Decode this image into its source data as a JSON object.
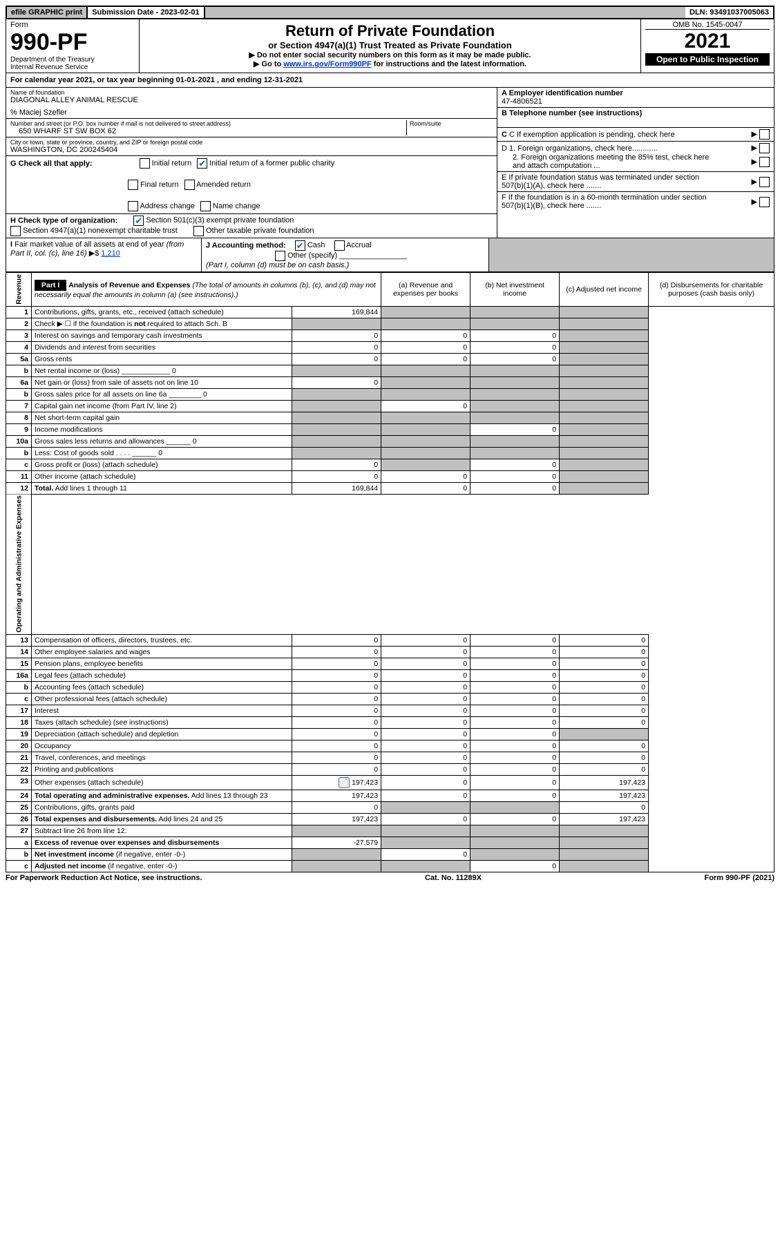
{
  "topbar": {
    "efile": "efile GRAPHIC print",
    "submission": "Submission Date - 2023-02-01",
    "dln": "DLN: 93491037005063"
  },
  "header": {
    "form_label": "Form",
    "form_no": "990-PF",
    "dept1": "Department of the Treasury",
    "dept2": "Internal Revenue Service",
    "title": "Return of Private Foundation",
    "subtitle": "or Section 4947(a)(1) Trust Treated as Private Foundation",
    "instr1": "▶ Do not enter social security numbers on this form as it may be made public.",
    "instr2_pre": "▶ Go to ",
    "instr2_link": "www.irs.gov/Form990PF",
    "instr2_post": " for instructions and the latest information.",
    "omb": "OMB No. 1545-0047",
    "year": "2021",
    "open_pub": "Open to Public Inspection"
  },
  "cal_year": "For calendar year 2021, or tax year beginning 01-01-2021               , and ending 12-31-2021",
  "foundation": {
    "name_label": "Name of foundation",
    "name": "DIAGONAL ALLEY ANIMAL RESCUE",
    "care_of": "% Maciej Szefler",
    "street_label": "Number and street (or P.O. box number if mail is not delivered to street address)",
    "street": "650 WHARF ST SW BOX 62",
    "room_label": "Room/suite",
    "city_label": "City or town, state or province, country, and ZIP or foreign postal code",
    "city": "WASHINGTON, DC  200245404",
    "ein_label": "A Employer identification number",
    "ein": "47-4806521",
    "tel_label": "B Telephone number (see instructions)",
    "c_label": "C If exemption application is pending, check here",
    "d1": "D 1. Foreign organizations, check here............",
    "d2": "2. Foreign organizations meeting the 85% test, check here and attach computation ...",
    "e_label": "E  If private foundation status was terminated under section 507(b)(1)(A), check here .......",
    "f_label": "F  If the foundation is in a 60-month termination under section 507(b)(1)(B), check here .......",
    "g_label": "G Check all that apply:",
    "g_opts": [
      "Initial return",
      "Initial return of a former public charity",
      "Final return",
      "Amended return",
      "Address change",
      "Name change"
    ],
    "h_label": "H Check type of organization:",
    "h_opts": [
      "Section 501(c)(3) exempt private foundation",
      "Section 4947(a)(1) nonexempt charitable trust",
      "Other taxable private foundation"
    ],
    "i_label": "I Fair market value of all assets at end of year (from Part II, col. (c), line 16) ▶$ ",
    "i_value": "1,210",
    "j_label": "J Accounting method:",
    "j_cash": "Cash",
    "j_accrual": "Accrual",
    "j_other": "Other (specify)",
    "j_note": "(Part I, column (d) must be on cash basis.)"
  },
  "part1": {
    "label": "Part I",
    "title": "Analysis of Revenue and Expenses",
    "title_note": "(The total of amounts in columns (b), (c), and (d) may not necessarily equal the amounts in column (a) (see instructions).)",
    "col_a": "(a) Revenue and expenses per books",
    "col_b": "(b) Net investment income",
    "col_c": "(c) Adjusted net income",
    "col_d": "(d) Disbursements for charitable purposes (cash basis only)",
    "side_rev": "Revenue",
    "side_exp": "Operating and Administrative Expenses"
  },
  "rows": [
    {
      "n": "1",
      "d": "",
      "a": "169,844",
      "b": "",
      "c": "",
      "sb": true,
      "sc": true,
      "sd": true
    },
    {
      "n": "2",
      "d": "",
      "dotted": true,
      "a": "",
      "b": "",
      "c": "",
      "sa": true,
      "sb": true,
      "sc": true,
      "sd": true
    },
    {
      "n": "3",
      "d": "",
      "a": "0",
      "b": "0",
      "c": "0",
      "sd": true
    },
    {
      "n": "4",
      "d": "",
      "dotted": true,
      "a": "0",
      "b": "0",
      "c": "0",
      "sd": true
    },
    {
      "n": "5a",
      "d": "",
      "dotted": true,
      "a": "0",
      "b": "0",
      "c": "0",
      "sd": true
    },
    {
      "n": "b",
      "d": "",
      "a": "",
      "b": "",
      "c": "",
      "sa": true,
      "sb": true,
      "sc": true,
      "sd": true
    },
    {
      "n": "6a",
      "d": "",
      "a": "0",
      "b": "",
      "c": "",
      "sb": true,
      "sc": true,
      "sd": true
    },
    {
      "n": "b",
      "d": "",
      "a": "",
      "b": "",
      "c": "",
      "sa": true,
      "sb": true,
      "sc": true,
      "sd": true
    },
    {
      "n": "7",
      "d": "",
      "dotted": true,
      "a": "",
      "b": "0",
      "c": "",
      "sa": true,
      "sc": true,
      "sd": true
    },
    {
      "n": "8",
      "d": "",
      "dotted": true,
      "a": "",
      "b": "",
      "c": "",
      "sa": true,
      "sb": true,
      "sc": true,
      "sd": true
    },
    {
      "n": "9",
      "d": "",
      "dotted": true,
      "a": "",
      "b": "",
      "c": "0",
      "sa": true,
      "sb": true,
      "sd": true
    },
    {
      "n": "10a",
      "d": "",
      "a": "",
      "b": "",
      "c": "",
      "sa": true,
      "sb": true,
      "sc": true,
      "sd": true
    },
    {
      "n": "b",
      "d": "",
      "a": "",
      "b": "",
      "c": "",
      "sa": true,
      "sb": true,
      "sc": true,
      "sd": true
    },
    {
      "n": "c",
      "d": "",
      "dotted": true,
      "a": "0",
      "b": "",
      "c": "0",
      "sb": true,
      "sd": true
    },
    {
      "n": "11",
      "d": "",
      "dotted": true,
      "a": "0",
      "b": "0",
      "c": "0",
      "sd": true
    },
    {
      "n": "12",
      "d": "",
      "dotted": true,
      "a": "169,844",
      "b": "0",
      "c": "0",
      "sd": true
    },
    {
      "n": "13",
      "d": "0",
      "a": "0",
      "b": "0",
      "c": "0"
    },
    {
      "n": "14",
      "d": "0",
      "dotted": true,
      "a": "0",
      "b": "0",
      "c": "0"
    },
    {
      "n": "15",
      "d": "0",
      "dotted": true,
      "a": "0",
      "b": "0",
      "c": "0"
    },
    {
      "n": "16a",
      "d": "0",
      "dotted": true,
      "a": "0",
      "b": "0",
      "c": "0"
    },
    {
      "n": "b",
      "d": "0",
      "dotted": true,
      "a": "0",
      "b": "0",
      "c": "0"
    },
    {
      "n": "c",
      "d": "0",
      "dotted": true,
      "a": "0",
      "b": "0",
      "c": "0"
    },
    {
      "n": "17",
      "d": "0",
      "dotted": true,
      "a": "0",
      "b": "0",
      "c": "0"
    },
    {
      "n": "18",
      "d": "0",
      "dotted": true,
      "a": "0",
      "b": "0",
      "c": "0"
    },
    {
      "n": "19",
      "d": "",
      "dotted": true,
      "a": "0",
      "b": "0",
      "c": "0",
      "sd": true
    },
    {
      "n": "20",
      "d": "0",
      "dotted": true,
      "a": "0",
      "b": "0",
      "c": "0"
    },
    {
      "n": "21",
      "d": "0",
      "dotted": true,
      "a": "0",
      "b": "0",
      "c": "0"
    },
    {
      "n": "22",
      "d": "0",
      "dotted": true,
      "a": "0",
      "b": "0",
      "c": "0"
    },
    {
      "n": "23",
      "d": "197,423",
      "dotted": true,
      "icon": true,
      "a": "197,423",
      "b": "0",
      "c": "0"
    },
    {
      "n": "24",
      "d": "197,423",
      "dotted": true,
      "a": "197,423",
      "b": "0",
      "c": "0"
    },
    {
      "n": "25",
      "d": "0",
      "dotted": true,
      "a": "0",
      "b": "",
      "c": "",
      "sb": true,
      "sc": true
    },
    {
      "n": "26",
      "d": "197,423",
      "a": "197,423",
      "b": "0",
      "c": "0"
    },
    {
      "n": "27",
      "d": "",
      "a": "",
      "b": "",
      "c": "",
      "sa": true,
      "sb": true,
      "sc": true,
      "sd": true
    },
    {
      "n": "a",
      "d": "",
      "a": "-27,579",
      "b": "",
      "c": "",
      "sb": true,
      "sc": true,
      "sd": true
    },
    {
      "n": "b",
      "d": "",
      "a": "",
      "b": "0",
      "c": "",
      "sa": true,
      "sc": true,
      "sd": true
    },
    {
      "n": "c",
      "d": "",
      "dotted": true,
      "a": "",
      "b": "",
      "c": "0",
      "sa": true,
      "sb": true,
      "sd": true
    }
  ],
  "footer": {
    "left": "For Paperwork Reduction Act Notice, see instructions.",
    "mid": "Cat. No. 11289X",
    "right": "Form 990-PF (2021)"
  }
}
